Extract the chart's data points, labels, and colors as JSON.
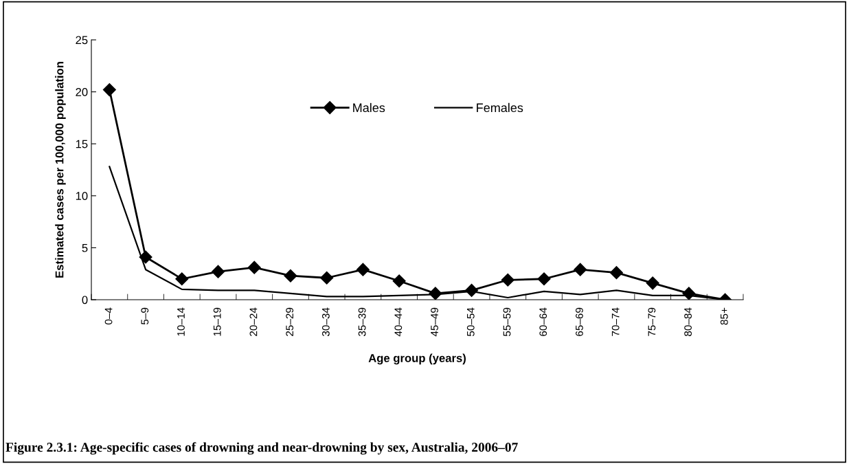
{
  "chart_data": {
    "type": "line",
    "xlabel": "Age group (years)",
    "ylabel": "Estimated cases per 100,000 population",
    "categories": [
      "0–4",
      "5–9",
      "10–14",
      "15–19",
      "20–24",
      "25–29",
      "30–34",
      "35–39",
      "40–44",
      "45–49",
      "50–54",
      "55–59",
      "60–64",
      "65–69",
      "70–74",
      "75–79",
      "80–84",
      "85+"
    ],
    "series": [
      {
        "name": "Males",
        "color": "#000000",
        "marker": "diamond",
        "values": [
          20.2,
          4.1,
          2.0,
          2.7,
          3.1,
          2.3,
          2.1,
          2.9,
          1.8,
          0.6,
          0.9,
          1.9,
          2.0,
          2.9,
          2.6,
          1.6,
          0.6,
          0.0
        ]
      },
      {
        "name": "Females",
        "color": "#000000",
        "marker": "none",
        "values": [
          12.8,
          2.9,
          1.0,
          0.9,
          0.9,
          0.6,
          0.3,
          0.3,
          0.4,
          0.5,
          0.8,
          0.2,
          0.8,
          0.5,
          0.9,
          0.4,
          0.4,
          0.0
        ]
      }
    ],
    "ylim": [
      0,
      25
    ],
    "yticks": [
      0,
      5,
      10,
      15,
      20,
      25
    ],
    "grid": false,
    "legend": "top",
    "annotations": [
      "Figure 2.3.1: Age-specific cases of drowning and near-drowning by sex, Australia, 2006–07"
    ]
  }
}
